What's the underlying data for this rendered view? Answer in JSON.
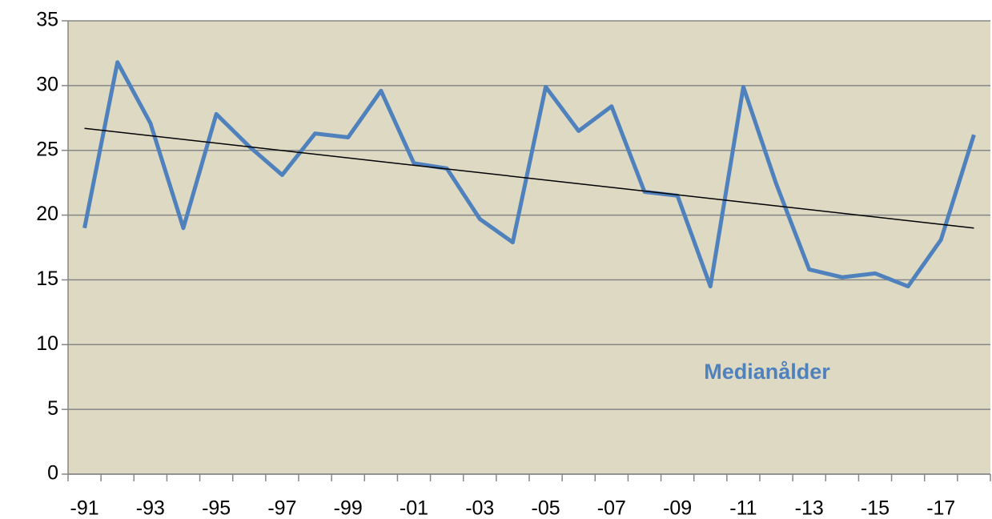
{
  "chart_data": {
    "type": "line",
    "categories": [
      "-91",
      null,
      "-93",
      null,
      "-95",
      null,
      "-97",
      null,
      "-99",
      null,
      "-01",
      null,
      "-03",
      null,
      "-05",
      null,
      "-07",
      null,
      "-09",
      null,
      "-11",
      null,
      "-13",
      null,
      "-15",
      null,
      "-17",
      null
    ],
    "series": [
      {
        "name": "Medianålder",
        "color": "#4f81bd",
        "values": [
          19.0,
          31.8,
          27.1,
          19.0,
          27.8,
          25.3,
          23.1,
          26.3,
          26.0,
          29.6,
          24.0,
          23.6,
          19.7,
          17.9,
          29.9,
          26.5,
          28.4,
          21.8,
          21.5,
          14.5,
          29.9,
          22.4,
          15.8,
          15.2,
          15.5,
          14.5,
          18.1,
          26.2
        ]
      }
    ],
    "trendline": {
      "color": "#000000",
      "values": [
        26.7,
        19.0
      ]
    },
    "ylim": [
      0,
      35
    ],
    "yticks": [
      0,
      5,
      10,
      15,
      20,
      25,
      30,
      35
    ],
    "grid": true,
    "background": "#ddd9c3"
  }
}
